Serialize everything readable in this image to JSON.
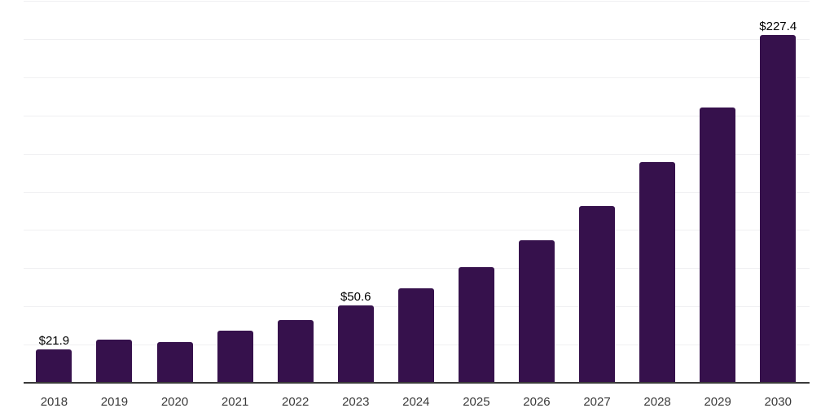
{
  "chart": {
    "background_color": "#ffffff",
    "bar_color": "#36114C",
    "gridline_color": "#f0f0f2",
    "axis_line_color": "#3a3a3a",
    "x_label_color": "#3a3a3a",
    "value_label_color": "#000000"
  },
  "chart_data": {
    "type": "bar",
    "title": "",
    "xlabel": "",
    "ylabel": "",
    "categories": [
      "2018",
      "2019",
      "2020",
      "2021",
      "2022",
      "2023",
      "2024",
      "2025",
      "2026",
      "2027",
      "2028",
      "2029",
      "2030"
    ],
    "values": [
      21.9,
      28.0,
      26.6,
      34.2,
      41.3,
      50.6,
      61.8,
      75.5,
      93.3,
      115.8,
      144.3,
      180.3,
      227.4
    ],
    "data_labels": [
      {
        "index": 0,
        "text": "$21.9"
      },
      {
        "index": 5,
        "text": "$50.6"
      },
      {
        "index": 12,
        "text": "$227.4"
      }
    ],
    "ylim": [
      0,
      250
    ],
    "gridline_step": 25,
    "grid": true,
    "legend": false,
    "y_axis_tick_labels_visible": false
  }
}
